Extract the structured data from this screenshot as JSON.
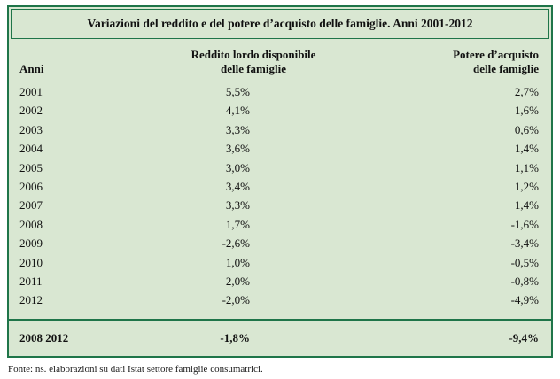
{
  "panel": {
    "title": "Variazioni del reddito e del potere d’acquisto delle famiglie. Anni 2001-2012",
    "colors": {
      "background": "#d9e7d2",
      "border": "#1f7549",
      "text": "#111111"
    }
  },
  "table": {
    "headers": {
      "anni": "Anni",
      "reddito": "Reddito lordo disponibile\ndelle famiglie",
      "potere": "Potere d’acquisto\ndelle famiglie"
    },
    "rows": [
      {
        "anno": "2001",
        "reddito": "5,5%",
        "potere": "2,7%"
      },
      {
        "anno": "2002",
        "reddito": "4,1%",
        "potere": "1,6%"
      },
      {
        "anno": "2003",
        "reddito": "3,3%",
        "potere": "0,6%"
      },
      {
        "anno": "2004",
        "reddito": "3,6%",
        "potere": "1,4%"
      },
      {
        "anno": "2005",
        "reddito": "3,0%",
        "potere": "1,1%"
      },
      {
        "anno": "2006",
        "reddito": "3,4%",
        "potere": "1,2%"
      },
      {
        "anno": "2007",
        "reddito": "3,3%",
        "potere": "1,4%"
      },
      {
        "anno": "2008",
        "reddito": "1,7%",
        "potere": "-1,6%"
      },
      {
        "anno": "2009",
        "reddito": "-2,6%",
        "potere": "-3,4%"
      },
      {
        "anno": "2010",
        "reddito": "1,0%",
        "potere": "-0,5%"
      },
      {
        "anno": "2011",
        "reddito": "2,0%",
        "potere": "-0,8%"
      },
      {
        "anno": "2012",
        "reddito": "-2,0%",
        "potere": "-4,9%"
      }
    ],
    "summary": {
      "anno": "2008 2012",
      "reddito": "-1,8%",
      "potere": "-9,4%"
    }
  },
  "footer": {
    "source": "Fonte: ns. elaborazioni su dati Istat settore famiglie consumatrici."
  }
}
